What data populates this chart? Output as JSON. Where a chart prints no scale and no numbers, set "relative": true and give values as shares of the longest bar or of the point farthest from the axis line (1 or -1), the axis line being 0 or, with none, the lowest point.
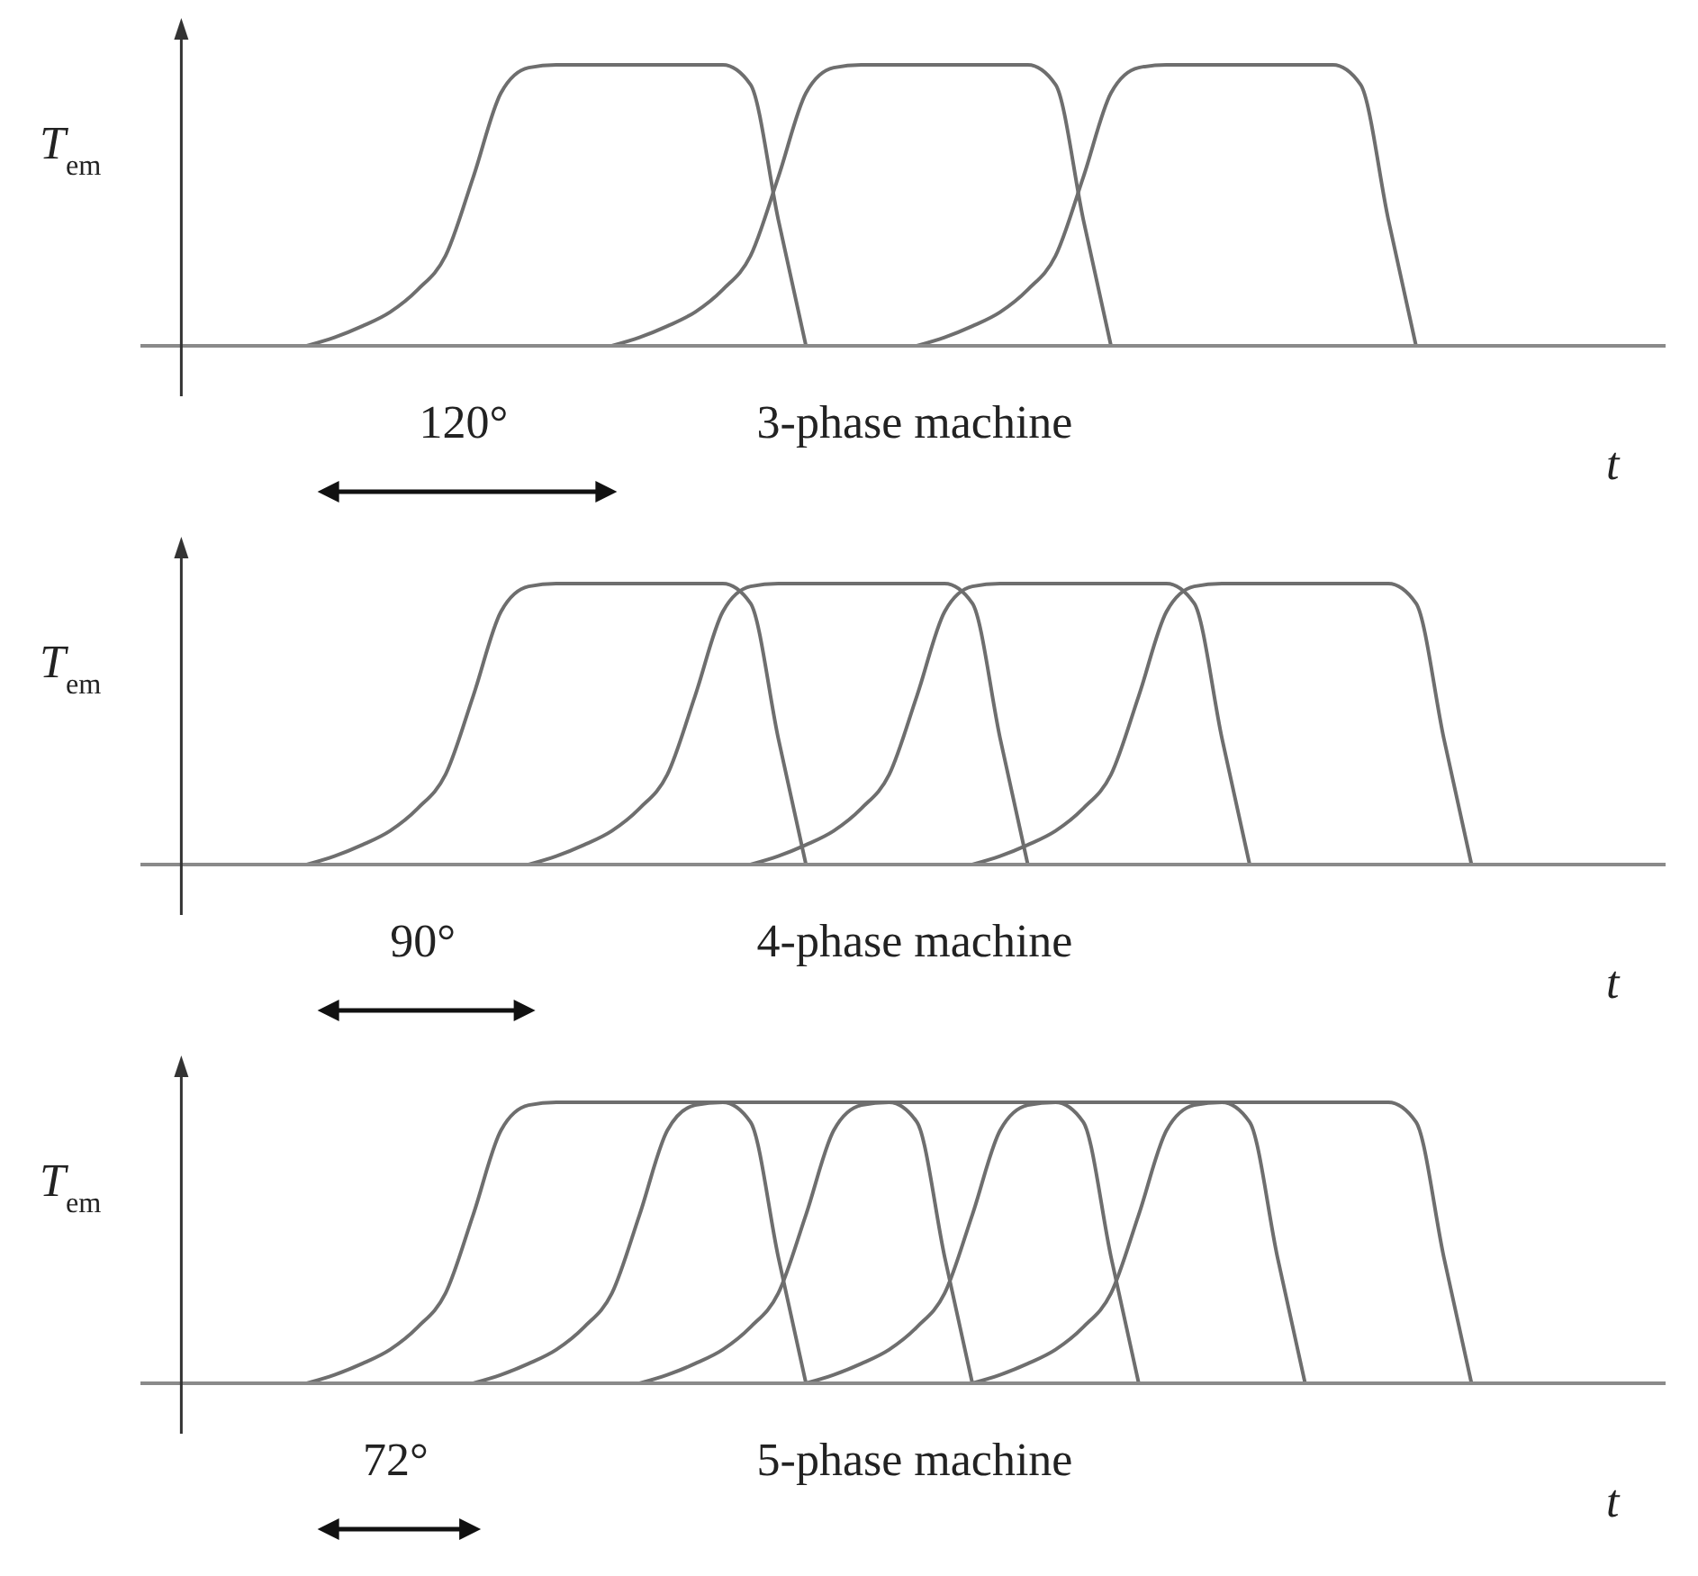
{
  "chart_data": [
    {
      "type": "line",
      "relative": true,
      "xlabel": "t",
      "ylabel": "T$_{em}$",
      "annotations": [
        "120°",
        "3-phase machine"
      ],
      "categories": [
        null,
        null,
        null,
        null,
        null,
        null,
        null,
        null,
        null,
        null,
        null,
        null,
        null,
        null,
        null,
        null,
        null,
        null,
        null,
        null,
        null,
        null,
        null,
        null,
        null,
        null,
        null,
        null,
        null,
        null,
        null,
        null,
        null,
        null,
        null,
        null,
        null,
        null,
        null,
        null,
        null,
        null,
        null,
        null,
        null,
        null,
        null,
        null,
        null,
        null,
        null,
        null,
        null,
        null,
        null,
        null
      ],
      "series": [
        {
          "color": "#6e6e6e",
          "values": [
            null,
            null,
            null,
            null,
            null,
            null,
            0,
            0.03,
            0.07,
            0.12,
            0.2,
            0.32,
            0.6,
            0.9,
            0.99,
            1,
            1,
            1,
            1,
            1,
            1,
            1,
            0.93,
            0.45,
            0,
            null,
            null,
            null,
            null,
            null,
            null,
            null,
            null,
            null,
            null,
            null,
            null,
            null,
            null,
            null,
            null,
            null,
            null,
            null,
            null,
            null,
            null,
            null,
            null,
            null,
            null,
            null,
            null,
            null,
            null,
            null
          ]
        },
        {
          "color": "#6e6e6e",
          "values": [
            null,
            null,
            null,
            null,
            null,
            null,
            null,
            null,
            null,
            null,
            null,
            null,
            null,
            null,
            null,
            null,
            null,
            0,
            0.03,
            0.07,
            0.12,
            0.2,
            0.32,
            0.6,
            0.9,
            0.99,
            1,
            1,
            1,
            1,
            1,
            1,
            1,
            0.93,
            0.45,
            0,
            null,
            null,
            null,
            null,
            null,
            null,
            null,
            null,
            null,
            null,
            null,
            null,
            null,
            null,
            null,
            null,
            null,
            null,
            null,
            null
          ]
        },
        {
          "color": "#6e6e6e",
          "values": [
            null,
            null,
            null,
            null,
            null,
            null,
            null,
            null,
            null,
            null,
            null,
            null,
            null,
            null,
            null,
            null,
            null,
            null,
            null,
            null,
            null,
            null,
            null,
            null,
            null,
            null,
            null,
            null,
            0,
            0.03,
            0.07,
            0.12,
            0.2,
            0.32,
            0.6,
            0.9,
            0.99,
            1,
            1,
            1,
            1,
            1,
            1,
            1,
            0.93,
            0.45,
            0,
            null,
            null,
            null,
            null,
            null,
            null,
            null,
            null,
            null
          ]
        }
      ]
    },
    {
      "type": "line",
      "relative": true,
      "xlabel": "t",
      "ylabel": "T$_{em}$",
      "annotations": [
        "90°",
        "4-phase machine"
      ],
      "categories": [
        null,
        null,
        null,
        null,
        null,
        null,
        null,
        null,
        null,
        null,
        null,
        null,
        null,
        null,
        null,
        null,
        null,
        null,
        null,
        null,
        null,
        null,
        null,
        null,
        null,
        null,
        null,
        null,
        null,
        null,
        null,
        null,
        null,
        null,
        null,
        null,
        null,
        null,
        null,
        null,
        null,
        null,
        null,
        null,
        null,
        null,
        null,
        null,
        null,
        null,
        null,
        null,
        null,
        null,
        null,
        null
      ],
      "series": [
        {
          "color": "#6e6e6e",
          "values": [
            null,
            null,
            null,
            null,
            null,
            null,
            0,
            0.03,
            0.07,
            0.12,
            0.2,
            0.32,
            0.6,
            0.9,
            0.99,
            1,
            1,
            1,
            1,
            1,
            1,
            1,
            0.93,
            0.45,
            0,
            null,
            null,
            null,
            null,
            null,
            null,
            null,
            null,
            null,
            null,
            null,
            null,
            null,
            null,
            null,
            null,
            null,
            null,
            null,
            null,
            null,
            null,
            null,
            null,
            null,
            null,
            null,
            null,
            null,
            null,
            null
          ]
        },
        {
          "color": "#6e6e6e",
          "values": [
            null,
            null,
            null,
            null,
            null,
            null,
            null,
            null,
            null,
            null,
            null,
            null,
            null,
            null,
            0,
            0.03,
            0.07,
            0.12,
            0.2,
            0.32,
            0.6,
            0.9,
            0.99,
            1,
            1,
            1,
            1,
            1,
            1,
            1,
            0.93,
            0.45,
            0,
            null,
            null,
            null,
            null,
            null,
            null,
            null,
            null,
            null,
            null,
            null,
            null,
            null,
            null,
            null,
            null,
            null,
            null,
            null,
            null,
            null,
            null,
            null
          ]
        },
        {
          "color": "#6e6e6e",
          "values": [
            null,
            null,
            null,
            null,
            null,
            null,
            null,
            null,
            null,
            null,
            null,
            null,
            null,
            null,
            null,
            null,
            null,
            null,
            null,
            null,
            null,
            null,
            0,
            0.03,
            0.07,
            0.12,
            0.2,
            0.32,
            0.6,
            0.9,
            0.99,
            1,
            1,
            1,
            1,
            1,
            1,
            1,
            0.93,
            0.45,
            0,
            null,
            null,
            null,
            null,
            null,
            null,
            null,
            null,
            null,
            null,
            null,
            null,
            null,
            null,
            null
          ]
        },
        {
          "color": "#6e6e6e",
          "values": [
            null,
            null,
            null,
            null,
            null,
            null,
            null,
            null,
            null,
            null,
            null,
            null,
            null,
            null,
            null,
            null,
            null,
            null,
            null,
            null,
            null,
            null,
            null,
            null,
            null,
            null,
            null,
            null,
            null,
            null,
            0,
            0.03,
            0.07,
            0.12,
            0.2,
            0.32,
            0.6,
            0.9,
            0.99,
            1,
            1,
            1,
            1,
            1,
            1,
            1,
            0.93,
            0.45,
            0,
            null,
            null,
            null,
            null,
            null,
            null,
            null
          ]
        }
      ]
    },
    {
      "type": "line",
      "relative": true,
      "xlabel": "t",
      "ylabel": "T$_{em}$",
      "annotations": [
        "72°",
        "5-phase machine"
      ],
      "categories": [
        null,
        null,
        null,
        null,
        null,
        null,
        null,
        null,
        null,
        null,
        null,
        null,
        null,
        null,
        null,
        null,
        null,
        null,
        null,
        null,
        null,
        null,
        null,
        null,
        null,
        null,
        null,
        null,
        null,
        null,
        null,
        null,
        null,
        null,
        null,
        null,
        null,
        null,
        null,
        null,
        null,
        null,
        null,
        null,
        null,
        null,
        null,
        null,
        null,
        null,
        null,
        null,
        null,
        null,
        null,
        null
      ],
      "series": [
        {
          "color": "#6e6e6e",
          "values": [
            null,
            null,
            null,
            null,
            null,
            null,
            0,
            0.03,
            0.07,
            0.12,
            0.2,
            0.32,
            0.6,
            0.9,
            0.99,
            1,
            1,
            1,
            1,
            1,
            1,
            1,
            0.93,
            0.45,
            0,
            null,
            null,
            null,
            null,
            null,
            null,
            null,
            null,
            null,
            null,
            null,
            null,
            null,
            null,
            null,
            null,
            null,
            null,
            null,
            null,
            null,
            null,
            null,
            null,
            null,
            null,
            null,
            null,
            null,
            null,
            null
          ]
        },
        {
          "color": "#6e6e6e",
          "values": [
            null,
            null,
            null,
            null,
            null,
            null,
            null,
            null,
            null,
            null,
            null,
            null,
            0,
            0.03,
            0.07,
            0.12,
            0.2,
            0.32,
            0.6,
            0.9,
            0.99,
            1,
            1,
            1,
            1,
            1,
            1,
            1,
            0.93,
            0.45,
            0,
            null,
            null,
            null,
            null,
            null,
            null,
            null,
            null,
            null,
            null,
            null,
            null,
            null,
            null,
            null,
            null,
            null,
            null,
            null,
            null,
            null,
            null,
            null,
            null,
            null
          ]
        },
        {
          "color": "#6e6e6e",
          "values": [
            null,
            null,
            null,
            null,
            null,
            null,
            null,
            null,
            null,
            null,
            null,
            null,
            null,
            null,
            null,
            null,
            null,
            null,
            0,
            0.03,
            0.07,
            0.12,
            0.2,
            0.32,
            0.6,
            0.9,
            0.99,
            1,
            1,
            1,
            1,
            1,
            1,
            1,
            0.93,
            0.45,
            0,
            null,
            null,
            null,
            null,
            null,
            null,
            null,
            null,
            null,
            null,
            null,
            null,
            null,
            null,
            null,
            null,
            null,
            null,
            null
          ]
        },
        {
          "color": "#6e6e6e",
          "values": [
            null,
            null,
            null,
            null,
            null,
            null,
            null,
            null,
            null,
            null,
            null,
            null,
            null,
            null,
            null,
            null,
            null,
            null,
            null,
            null,
            null,
            null,
            null,
            null,
            0,
            0.03,
            0.07,
            0.12,
            0.2,
            0.32,
            0.6,
            0.9,
            0.99,
            1,
            1,
            1,
            1,
            1,
            1,
            1,
            0.93,
            0.45,
            0,
            null,
            null,
            null,
            null,
            null,
            null,
            null,
            null,
            null,
            null,
            null,
            null,
            null
          ]
        },
        {
          "color": "#6e6e6e",
          "values": [
            null,
            null,
            null,
            null,
            null,
            null,
            null,
            null,
            null,
            null,
            null,
            null,
            null,
            null,
            null,
            null,
            null,
            null,
            null,
            null,
            null,
            null,
            null,
            null,
            null,
            null,
            null,
            null,
            null,
            null,
            0,
            0.03,
            0.07,
            0.12,
            0.2,
            0.32,
            0.6,
            0.9,
            0.99,
            1,
            1,
            1,
            1,
            1,
            1,
            1,
            0.93,
            0.45,
            0,
            null,
            null,
            null,
            null,
            null,
            null,
            null
          ]
        }
      ]
    }
  ]
}
